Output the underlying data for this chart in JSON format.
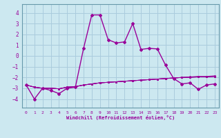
{
  "xlabel": "Windchill (Refroidissement éolien,°C)",
  "bg_color": "#cce8f0",
  "grid_color": "#aaccdd",
  "line_color": "#990099",
  "spine_color": "#6699aa",
  "xlim": [
    -0.5,
    23.5
  ],
  "ylim": [
    -4.8,
    4.8
  ],
  "xticks": [
    0,
    1,
    2,
    3,
    4,
    5,
    6,
    7,
    8,
    9,
    10,
    11,
    12,
    13,
    14,
    15,
    16,
    17,
    18,
    19,
    20,
    21,
    22,
    23
  ],
  "yticks": [
    -4,
    -3,
    -2,
    -1,
    0,
    1,
    2,
    3,
    4
  ],
  "series": [
    [
      -2.7,
      -4.0,
      -3.0,
      -3.2,
      -3.5,
      -3.0,
      -2.9,
      0.7,
      3.8,
      3.8,
      1.5,
      1.2,
      1.3,
      3.0,
      0.6,
      0.7,
      0.65,
      -0.85,
      -2.1,
      -2.6,
      -2.5,
      -3.1,
      -2.7,
      -2.6
    ],
    [
      -2.7,
      -2.9,
      -3.0,
      -3.0,
      -3.05,
      -2.9,
      -2.85,
      -2.7,
      -2.6,
      -2.5,
      -2.45,
      -2.4,
      -2.35,
      -2.3,
      -2.25,
      -2.2,
      -2.15,
      -2.1,
      -2.05,
      -2.0,
      -1.95,
      -1.9,
      -1.9,
      -1.85
    ],
    [
      -2.7,
      -2.9,
      -3.0,
      -3.0,
      -3.05,
      -2.9,
      -2.85,
      -2.7,
      -2.6,
      -2.5,
      -2.45,
      -2.4,
      -2.35,
      -2.3,
      -2.25,
      -2.2,
      -2.15,
      -2.1,
      -2.05,
      -2.0,
      -1.98,
      -1.95,
      -1.95,
      -1.9
    ],
    [
      -2.7,
      -2.9,
      -3.0,
      -3.0,
      -3.05,
      -2.9,
      -2.85,
      -2.7,
      -2.6,
      -2.5,
      -2.45,
      -2.4,
      -2.35,
      -2.3,
      -2.25,
      -2.2,
      -2.15,
      -2.1,
      -2.05,
      -2.0,
      -1.98,
      -1.95,
      -1.95,
      -1.9
    ],
    [
      -2.7,
      -2.9,
      -3.0,
      -3.0,
      -3.05,
      -2.9,
      -2.85,
      -2.7,
      -2.6,
      -2.5,
      -2.45,
      -2.4,
      -2.35,
      -2.3,
      -2.25,
      -2.2,
      -2.15,
      -2.1,
      -2.05,
      -2.0,
      -1.98,
      -1.95,
      -1.95,
      -1.9
    ]
  ]
}
